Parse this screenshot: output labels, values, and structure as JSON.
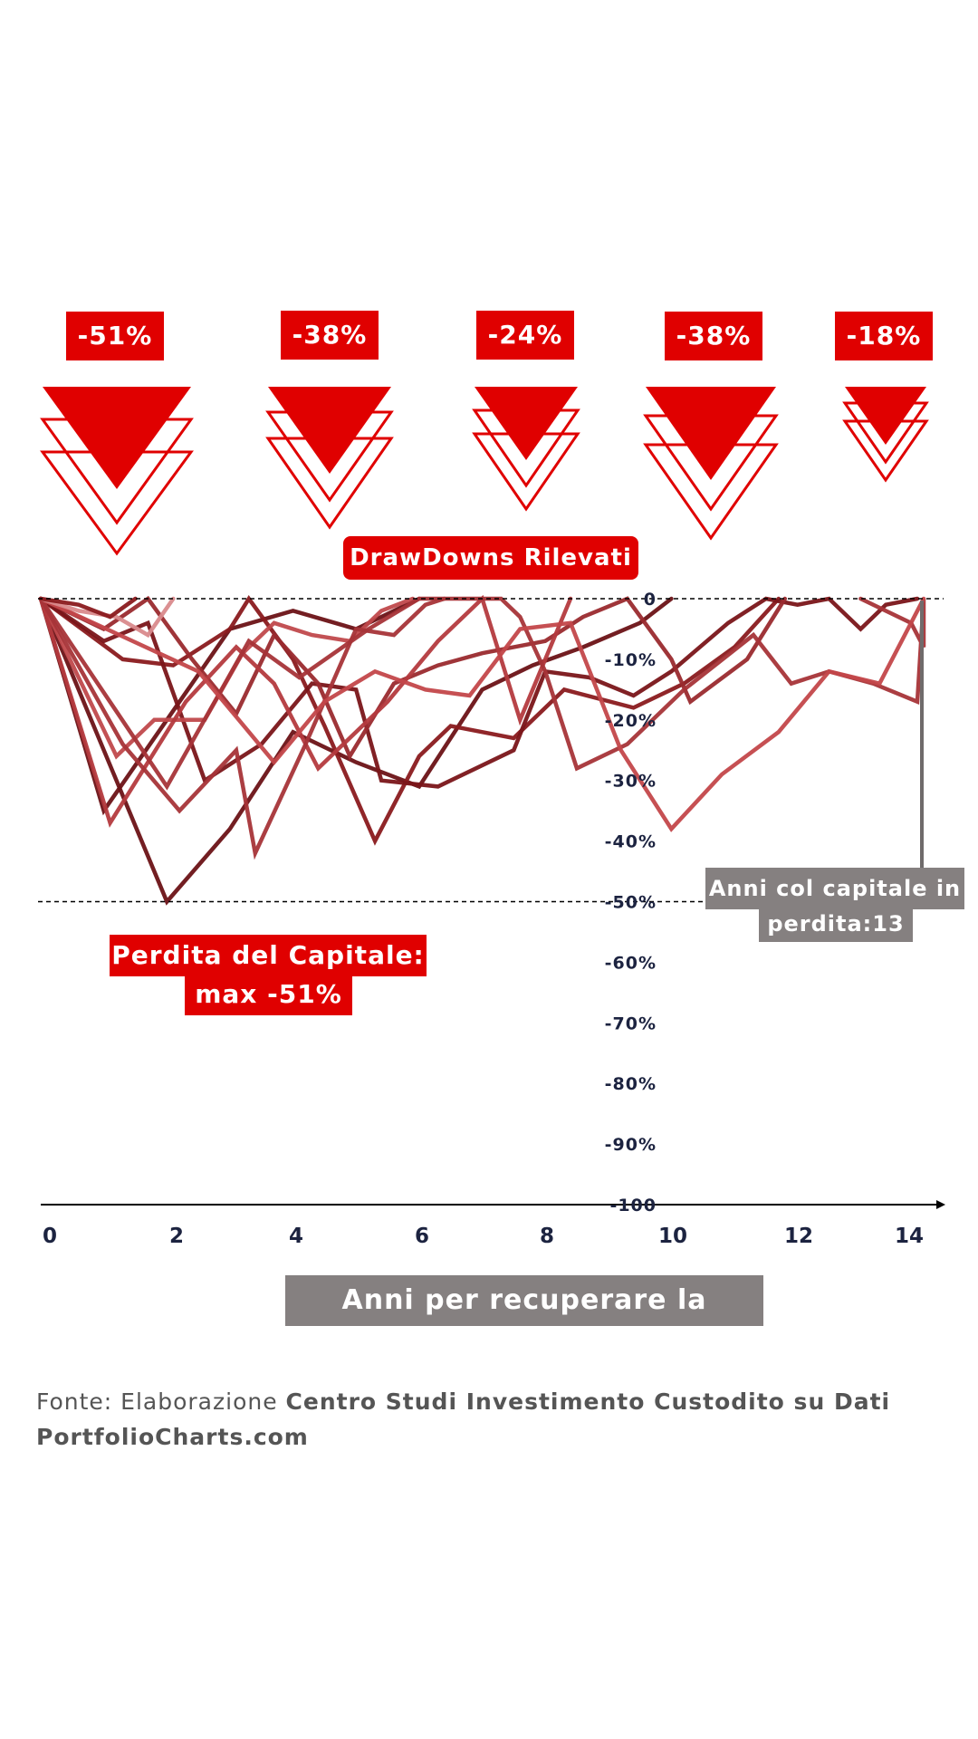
{
  "drawdowns": [
    "-51%",
    "-38%",
    "-24%",
    "-38%",
    "-18%"
  ],
  "title": "DrawDowns Rilevati",
  "loss_label": {
    "line1": "Perdita del Capitale:",
    "line2": "max -51%"
  },
  "years_label": {
    "line1": "Anni col capitale in",
    "line2": "perdita:13"
  },
  "xlabel": "Anni per recuperare la perdita",
  "source": {
    "prefix": "Fonte: Elaborazione ",
    "bold": "Centro Studi Investimento Custodito su Dati PortfolioCharts.com"
  },
  "colors": {
    "accent": "#e00000",
    "grey": "#858080",
    "axis": "#1c2340"
  },
  "chart_data": {
    "type": "line",
    "xlim": [
      0,
      14
    ],
    "ylim": [
      -100,
      0
    ],
    "x_ticks": [
      "0",
      "2",
      "4",
      "6",
      "8",
      "10",
      "12",
      "14"
    ],
    "y_ticks": [
      "0",
      "-10%",
      "-20%",
      "-30%",
      "-40%",
      "-50%",
      "-60%",
      "-70%",
      "-80%",
      "-90%",
      "-100"
    ],
    "reference_lines": [
      0,
      -50
    ],
    "series": [
      {
        "color": "#6b1216",
        "points": [
          [
            0,
            0
          ],
          [
            1,
            -35
          ],
          [
            2,
            -20
          ],
          [
            3,
            -5
          ],
          [
            4,
            -2
          ],
          [
            5,
            -5
          ],
          [
            6,
            0
          ]
        ]
      },
      {
        "color": "#6b1216",
        "points": [
          [
            0,
            0
          ],
          [
            2,
            -50
          ],
          [
            3,
            -38
          ],
          [
            4,
            -22
          ],
          [
            5,
            -27
          ],
          [
            6,
            -31
          ],
          [
            7,
            -15
          ],
          [
            7.8,
            -11
          ],
          [
            8.6,
            -8
          ],
          [
            9.5,
            -4
          ],
          [
            10,
            0
          ]
        ]
      },
      {
        "color": "#8a1a1e",
        "points": [
          [
            0,
            0
          ],
          [
            1.3,
            -10
          ],
          [
            2.1,
            -11
          ],
          [
            3,
            -5
          ],
          [
            3.3,
            0
          ],
          [
            4,
            -10
          ],
          [
            4.5,
            -21
          ],
          [
            5.3,
            -40
          ],
          [
            6,
            -26
          ],
          [
            6.5,
            -21
          ],
          [
            7.5,
            -23
          ],
          [
            8.3,
            -15
          ],
          [
            9.4,
            -18
          ],
          [
            10.2,
            -14
          ],
          [
            11,
            -8
          ],
          [
            11.7,
            0
          ]
        ]
      },
      {
        "color": "#7a1519",
        "points": [
          [
            0,
            0
          ],
          [
            1,
            -7
          ],
          [
            1.7,
            -4
          ],
          [
            2.6,
            -30
          ],
          [
            3.5,
            -24
          ],
          [
            4.3,
            -14
          ],
          [
            5,
            -15
          ],
          [
            5.4,
            -30
          ],
          [
            6.3,
            -31
          ],
          [
            7.5,
            -25
          ],
          [
            8,
            -12
          ],
          [
            8.7,
            -13
          ],
          [
            9.4,
            -16
          ],
          [
            10,
            -12
          ],
          [
            10.9,
            -4
          ],
          [
            11.5,
            0
          ],
          [
            12,
            -1
          ],
          [
            12.5,
            0
          ],
          [
            13,
            -5
          ],
          [
            13.4,
            -1
          ],
          [
            13.9,
            0
          ]
        ]
      },
      {
        "color": "#9a2a2e",
        "points": [
          [
            0,
            0
          ],
          [
            1,
            -5
          ],
          [
            1.7,
            0
          ],
          [
            2.4,
            -10
          ],
          [
            3.1,
            -19
          ],
          [
            3.7,
            -6
          ],
          [
            4.4,
            -14
          ],
          [
            4.9,
            -26
          ],
          [
            5.6,
            -14
          ],
          [
            6.3,
            -11
          ],
          [
            7,
            -9
          ],
          [
            8,
            -7
          ],
          [
            8.6,
            -3
          ],
          [
            9.3,
            0
          ],
          [
            10,
            -10
          ],
          [
            10.3,
            -17
          ],
          [
            11.2,
            -10
          ],
          [
            11.8,
            0
          ]
        ]
      },
      {
        "color": "#c0494c",
        "points": [
          [
            0,
            0
          ],
          [
            1.2,
            -26
          ],
          [
            1.8,
            -20
          ],
          [
            2.6,
            -20
          ],
          [
            3.2,
            -9
          ],
          [
            3.7,
            -4
          ],
          [
            4.3,
            -6
          ],
          [
            4.9,
            -7
          ],
          [
            5.4,
            -2
          ],
          [
            5.9,
            0
          ]
        ]
      },
      {
        "color": "#b43a3e",
        "points": [
          [
            0,
            0
          ],
          [
            1.1,
            -37
          ],
          [
            2.3,
            -17
          ],
          [
            3.1,
            -8
          ],
          [
            3.7,
            -14
          ],
          [
            4.4,
            -28
          ],
          [
            5.5,
            -17
          ],
          [
            6.3,
            -7
          ],
          [
            7,
            0
          ],
          [
            7.6,
            -20
          ],
          [
            8.4,
            0
          ]
        ]
      },
      {
        "color": "#a73438",
        "points": [
          [
            0,
            0
          ],
          [
            1.3,
            -24
          ],
          [
            2.2,
            -35
          ],
          [
            3.1,
            -25
          ],
          [
            3.4,
            -42
          ],
          [
            4.2,
            -24
          ],
          [
            5,
            -5
          ],
          [
            5.6,
            -6
          ],
          [
            6.1,
            -1
          ],
          [
            6.4,
            0
          ]
        ]
      },
      {
        "color": "#a73438",
        "points": [
          [
            0,
            0
          ],
          [
            2,
            -31
          ],
          [
            3.3,
            -7
          ],
          [
            4.1,
            -13
          ],
          [
            5.2,
            -5
          ],
          [
            6,
            0
          ],
          [
            7.3,
            0
          ],
          [
            7.6,
            -3
          ],
          [
            8,
            -12
          ],
          [
            8.5,
            -28
          ],
          [
            9.3,
            -24
          ],
          [
            10.2,
            -15
          ],
          [
            11.3,
            -6
          ],
          [
            11.9,
            -14
          ],
          [
            12.5,
            -12
          ],
          [
            13.2,
            -14
          ],
          [
            13.9,
            -17
          ],
          [
            15,
            0
          ],
          [
            14.5,
            -8
          ],
          [
            13.8,
            -4
          ],
          [
            13,
            0
          ]
        ]
      },
      {
        "color": "#c3474a",
        "points": [
          [
            0,
            0
          ],
          [
            2.5,
            -12
          ],
          [
            3.7,
            -27
          ],
          [
            4.5,
            -17
          ],
          [
            5.3,
            -12
          ],
          [
            6.1,
            -15
          ],
          [
            6.8,
            -16
          ],
          [
            7.6,
            -5
          ],
          [
            8.4,
            -4
          ],
          [
            9.2,
            -25
          ],
          [
            10,
            -38
          ],
          [
            10.8,
            -29
          ],
          [
            11.7,
            -22
          ],
          [
            12.5,
            -12
          ],
          [
            13.3,
            -14
          ],
          [
            14.2,
            0
          ]
        ]
      },
      {
        "color": "#d98a8c",
        "points": [
          [
            0,
            0
          ],
          [
            0.6,
            -2
          ],
          [
            1.2,
            -3
          ],
          [
            1.7,
            -6
          ],
          [
            2.1,
            0
          ]
        ]
      },
      {
        "color": "#8a1a1e",
        "points": [
          [
            0,
            0
          ],
          [
            0.6,
            -1
          ],
          [
            1.1,
            -3
          ],
          [
            1.5,
            0
          ]
        ]
      }
    ]
  }
}
